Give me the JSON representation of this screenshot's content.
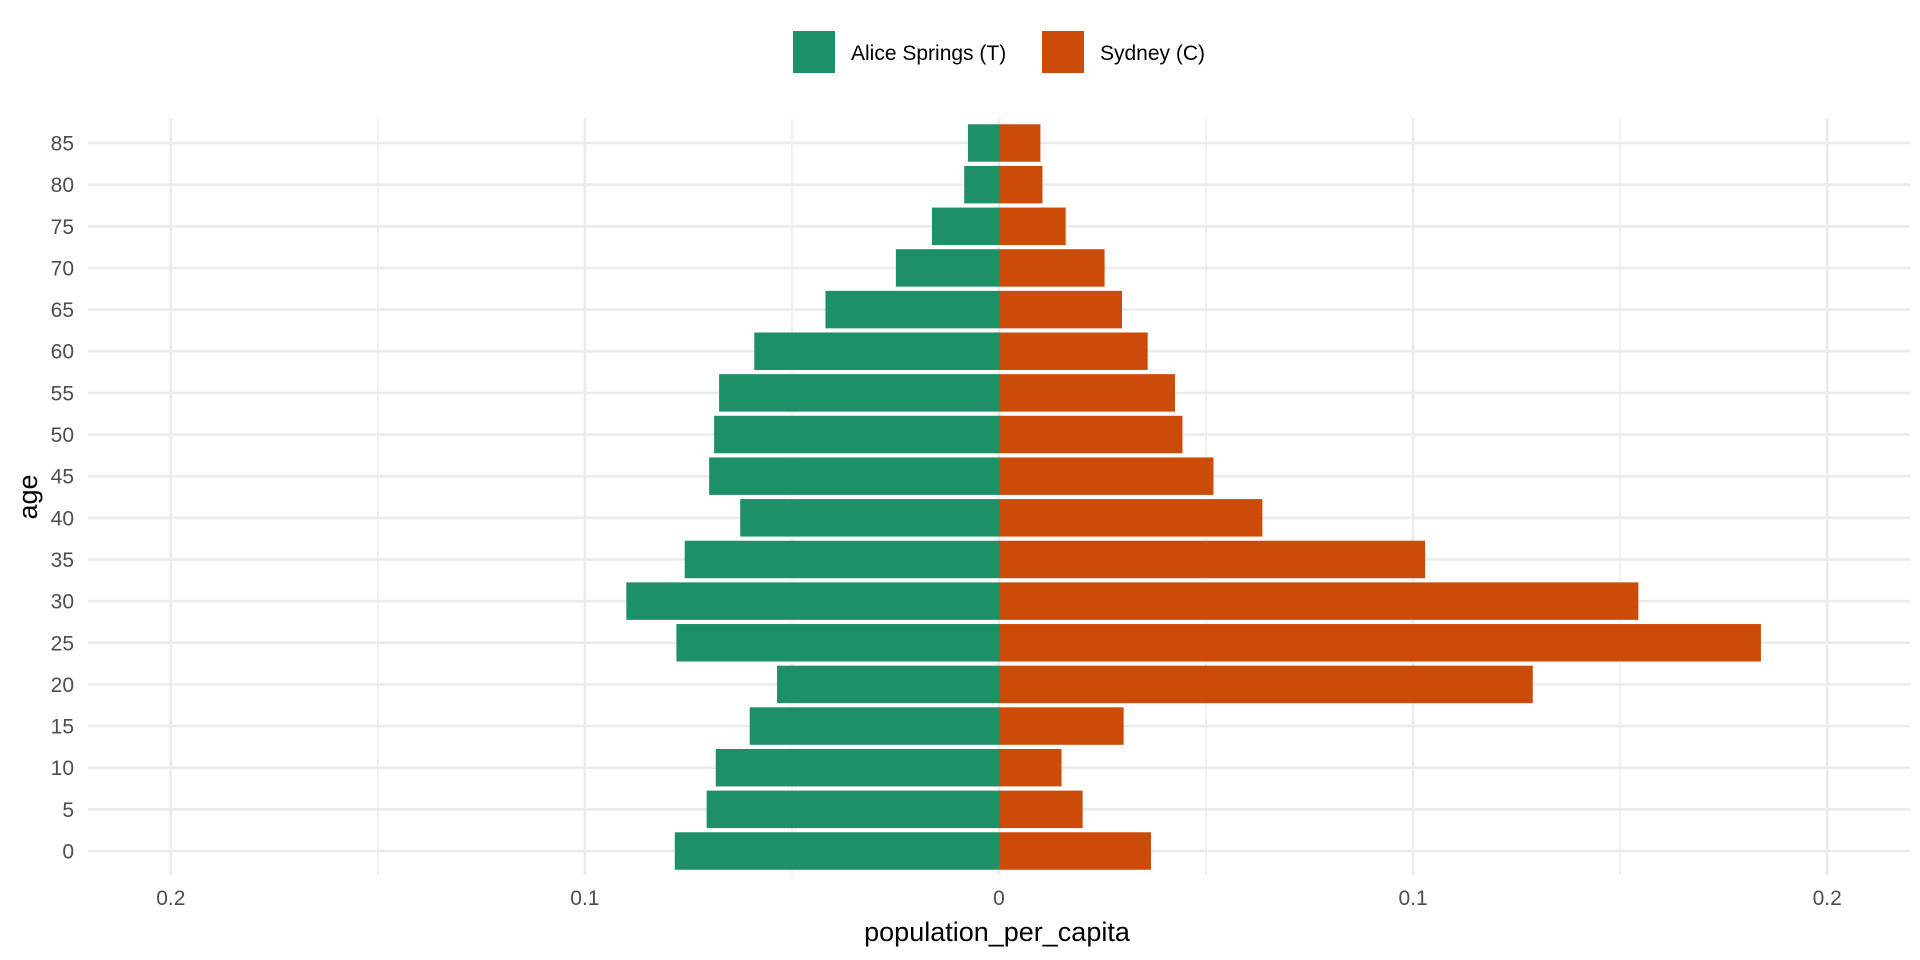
{
  "chart_data": {
    "type": "bar",
    "orientation": "horizontal",
    "style": "population-pyramid",
    "title": "",
    "xlabel": "population_per_capita",
    "ylabel": "age",
    "xlim": [
      -0.22,
      0.22
    ],
    "x_ticks": [
      {
        "value": -0.2,
        "label": "0.2"
      },
      {
        "value": -0.1,
        "label": "0.1"
      },
      {
        "value": 0,
        "label": "0"
      },
      {
        "value": 0.1,
        "label": "0.1"
      },
      {
        "value": 0.2,
        "label": "0.2"
      }
    ],
    "x_minor_ticks": [
      -0.15,
      -0.05,
      0.05,
      0.15
    ],
    "categories": [
      "0",
      "5",
      "10",
      "15",
      "20",
      "25",
      "30",
      "35",
      "40",
      "45",
      "50",
      "55",
      "60",
      "65",
      "70",
      "75",
      "80",
      "85"
    ],
    "grid": true,
    "legend": {
      "position": "top",
      "entries": [
        "Alice Springs (T)",
        "Sydney (C)"
      ]
    },
    "series": [
      {
        "name": "Alice Springs (T)",
        "color": "#1D9068",
        "direction": "left",
        "values": [
          0.0783,
          0.0706,
          0.0684,
          0.0602,
          0.0536,
          0.0779,
          0.09,
          0.0759,
          0.0625,
          0.07,
          0.0688,
          0.0676,
          0.0591,
          0.0419,
          0.0249,
          0.0162,
          0.0084,
          0.0075
        ]
      },
      {
        "name": "Sydney (C)",
        "color": "#CD4B08",
        "direction": "right",
        "values": [
          0.0367,
          0.0202,
          0.0151,
          0.0301,
          0.1289,
          0.184,
          0.1544,
          0.1029,
          0.0636,
          0.0518,
          0.0443,
          0.0425,
          0.0359,
          0.0297,
          0.0255,
          0.0161,
          0.0105,
          0.01
        ]
      }
    ]
  }
}
